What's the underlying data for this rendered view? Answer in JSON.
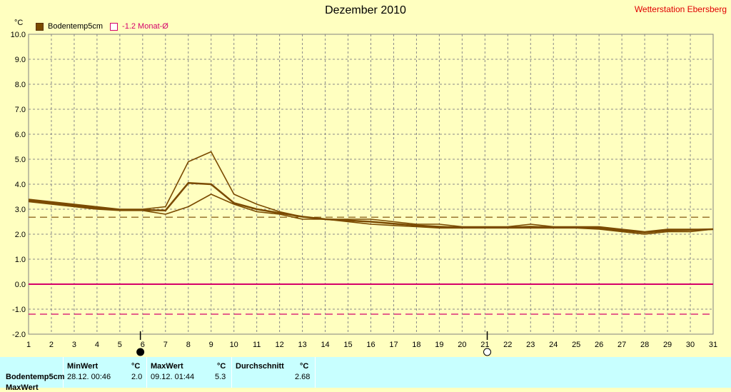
{
  "station": "Wetterstation Ebersberg",
  "legend": {
    "series1": "Bodentemp5cm",
    "series2": "-1.2 Monat-Ø"
  },
  "colors": {
    "series": "#7a4a00",
    "zero": "#d4006a",
    "month_avg": "#d4006a",
    "avg_dashed": "#7a4a00",
    "station": "#e00000"
  },
  "stats": {
    "row_label": "Bodentemp5cm",
    "row2_label": "MaxWert",
    "min_header": "MinWert",
    "min_unit": "°C",
    "min_time": "28.12.  00:46",
    "min_value": "2.0",
    "max_header": "MaxWert",
    "max_unit": "°C",
    "max_time": "09.12.  01:44",
    "max_value": "5.3",
    "avg_header": "Durchschnitt",
    "avg_unit": "°C",
    "avg_value": "2.68"
  },
  "chart_data": {
    "type": "line",
    "title": "Dezember 2010",
    "ylabel": "°C",
    "xlim": [
      1,
      31
    ],
    "ylim": [
      -2,
      10
    ],
    "xticks": [
      1,
      2,
      3,
      4,
      5,
      6,
      7,
      8,
      9,
      10,
      11,
      12,
      13,
      14,
      15,
      16,
      17,
      18,
      19,
      20,
      21,
      22,
      23,
      24,
      25,
      26,
      27,
      28,
      29,
      30,
      31
    ],
    "yticks": [
      "10.0",
      "9.0",
      "8.0",
      "7.0",
      "6.0",
      "5.0",
      "4.0",
      "3.0",
      "2.0",
      "1.0",
      "0.0",
      "-1.0",
      "-2.0"
    ],
    "grid": true,
    "reference_lines": [
      {
        "name": "Durchschnitt",
        "y": 2.68
      },
      {
        "name": "Monat-Ø",
        "y": -1.2
      },
      {
        "name": "zero",
        "y": 0.0
      }
    ],
    "moon_markers": [
      {
        "x": 5.9,
        "phase": "new"
      },
      {
        "x": 21.1,
        "phase": "full"
      }
    ],
    "series": [
      {
        "name": "Bodentemp5cm max",
        "x": [
          1,
          2,
          3,
          4,
          5,
          6,
          7,
          8,
          9,
          10,
          11,
          12,
          13,
          14,
          15,
          16,
          17,
          18,
          19,
          20,
          21,
          22,
          23,
          24,
          25,
          26,
          27,
          28,
          29,
          30,
          31
        ],
        "values": [
          3.4,
          3.3,
          3.2,
          3.1,
          3.0,
          3.0,
          3.1,
          4.9,
          5.3,
          3.6,
          3.2,
          2.9,
          2.7,
          2.6,
          2.6,
          2.6,
          2.5,
          2.4,
          2.4,
          2.3,
          2.3,
          2.3,
          2.4,
          2.3,
          2.3,
          2.3,
          2.2,
          2.1,
          2.2,
          2.2,
          2.2
        ]
      },
      {
        "name": "Bodentemp5cm avg",
        "x": [
          1,
          2,
          3,
          4,
          5,
          6,
          7,
          8,
          9,
          10,
          11,
          12,
          13,
          14,
          15,
          16,
          17,
          18,
          19,
          20,
          21,
          22,
          23,
          24,
          25,
          26,
          27,
          28,
          29,
          30,
          31
        ],
        "values": [
          3.35,
          3.25,
          3.15,
          3.05,
          2.97,
          2.97,
          2.95,
          4.05,
          4.0,
          3.25,
          3.0,
          2.85,
          2.7,
          2.6,
          2.55,
          2.5,
          2.42,
          2.35,
          2.3,
          2.27,
          2.27,
          2.27,
          2.3,
          2.27,
          2.27,
          2.25,
          2.15,
          2.07,
          2.15,
          2.17,
          2.2
        ]
      },
      {
        "name": "Bodentemp5cm min",
        "x": [
          1,
          2,
          3,
          4,
          5,
          6,
          7,
          8,
          9,
          10,
          11,
          12,
          13,
          14,
          15,
          16,
          17,
          18,
          19,
          20,
          21,
          22,
          23,
          24,
          25,
          26,
          27,
          28,
          29,
          30,
          31
        ],
        "values": [
          3.3,
          3.2,
          3.1,
          3.0,
          2.95,
          2.95,
          2.8,
          3.1,
          3.6,
          3.2,
          2.9,
          2.8,
          2.6,
          2.6,
          2.5,
          2.4,
          2.35,
          2.3,
          2.25,
          2.25,
          2.25,
          2.25,
          2.25,
          2.25,
          2.25,
          2.2,
          2.1,
          2.0,
          2.1,
          2.1,
          2.2
        ]
      }
    ]
  }
}
